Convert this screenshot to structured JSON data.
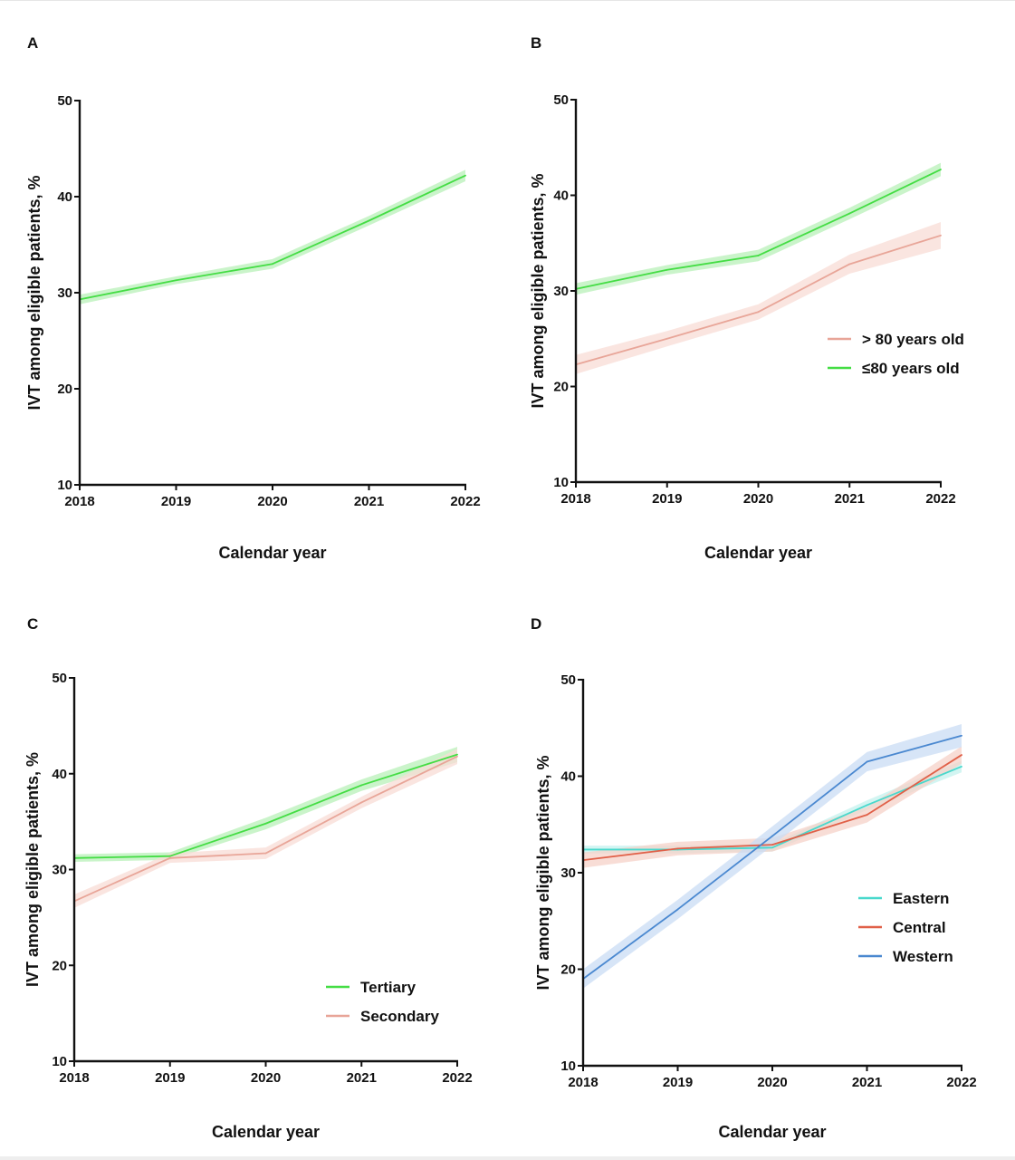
{
  "chart_data": [
    {
      "panel": "A",
      "type": "line",
      "xlabel": "Calendar year",
      "ylabel": "IVT among eligible patients, %",
      "x": [
        "2018",
        "2019",
        "2020",
        "2021",
        "2022"
      ],
      "yticks": [
        "10",
        "20",
        "30",
        "40",
        "50"
      ],
      "ylim": [
        10,
        50
      ],
      "legend": null,
      "series": [
        {
          "values": [
            29.3,
            31.3,
            33.0,
            37.5,
            42.2
          ],
          "lower": [
            28.8,
            30.9,
            32.5,
            37.0,
            41.6
          ],
          "upper": [
            29.8,
            31.7,
            33.5,
            38.0,
            42.8
          ],
          "color": "#44dd44",
          "band": "#b8f0b8"
        }
      ]
    },
    {
      "panel": "B",
      "type": "line",
      "xlabel": "Calendar year",
      "ylabel": "IVT among eligible patients, %",
      "x": [
        "2018",
        "2019",
        "2020",
        "2021",
        "2022"
      ],
      "yticks": [
        "10",
        "20",
        "30",
        "40",
        "50"
      ],
      "ylim": [
        10,
        50
      ],
      "legend": "center-right",
      "series": [
        {
          "name": "> 80 years old",
          "values": [
            22.3,
            25.0,
            27.8,
            32.8,
            35.8
          ],
          "lower": [
            21.3,
            24.2,
            27.0,
            31.8,
            34.4
          ],
          "upper": [
            23.3,
            25.8,
            28.6,
            33.8,
            37.2
          ],
          "color": "#e8a598",
          "band": "#f8dcd6"
        },
        {
          "name": "≤80 years old",
          "values": [
            30.2,
            32.2,
            33.7,
            38.1,
            42.7
          ],
          "lower": [
            29.6,
            31.7,
            33.1,
            37.5,
            42.0
          ],
          "upper": [
            30.8,
            32.7,
            34.3,
            38.7,
            43.4
          ],
          "color": "#44dd44",
          "band": "#b8f0b8"
        }
      ]
    },
    {
      "panel": "C",
      "type": "line",
      "xlabel": "Calendar year",
      "ylabel": "IVT among eligible patients, %",
      "x": [
        "2018",
        "2019",
        "2020",
        "2021",
        "2022"
      ],
      "yticks": [
        "10",
        "20",
        "30",
        "40",
        "50"
      ],
      "ylim": [
        10,
        50
      ],
      "legend": "bottom-right",
      "series": [
        {
          "name": "Tertiary",
          "values": [
            31.2,
            31.4,
            34.8,
            38.8,
            42.0
          ],
          "lower": [
            30.8,
            31.0,
            34.2,
            38.2,
            41.2
          ],
          "upper": [
            31.6,
            31.8,
            35.4,
            39.4,
            42.8
          ],
          "color": "#44dd44",
          "band": "#b8f0b8"
        },
        {
          "name": "Secondary",
          "values": [
            26.7,
            31.2,
            31.7,
            37.0,
            41.8
          ],
          "lower": [
            26.0,
            30.7,
            31.1,
            36.4,
            41.0
          ],
          "upper": [
            27.4,
            31.7,
            32.3,
            37.6,
            42.6
          ],
          "color": "#e8a598",
          "band": "#f8dcd6"
        }
      ]
    },
    {
      "panel": "D",
      "type": "line",
      "xlabel": "Calendar year",
      "ylabel": "IVT among eligible patients, %",
      "x": [
        "2018",
        "2019",
        "2020",
        "2021",
        "2022"
      ],
      "yticks": [
        "10",
        "20",
        "30",
        "40",
        "50"
      ],
      "ylim": [
        10,
        50
      ],
      "legend": "center-right",
      "series": [
        {
          "name": "Eastern",
          "values": [
            32.4,
            32.4,
            32.6,
            37.0,
            41.0
          ],
          "lower": [
            32.0,
            32.0,
            32.2,
            36.5,
            40.4
          ],
          "upper": [
            32.8,
            32.8,
            33.0,
            37.5,
            41.6
          ],
          "color": "#48d8cc",
          "band": "#c4f1ed"
        },
        {
          "name": "Central",
          "values": [
            31.3,
            32.5,
            32.9,
            36.0,
            42.2
          ],
          "lower": [
            30.5,
            31.8,
            32.2,
            35.2,
            41.3
          ],
          "upper": [
            32.1,
            33.2,
            33.6,
            36.8,
            43.1
          ],
          "color": "#e06048",
          "band": "#f5d2c8"
        },
        {
          "name": "Western",
          "values": [
            19.0,
            26.2,
            33.8,
            41.5,
            44.2
          ],
          "lower": [
            18.0,
            25.2,
            32.8,
            40.5,
            43.0
          ],
          "upper": [
            20.0,
            27.2,
            34.8,
            42.5,
            45.4
          ],
          "color": "#4a88d0",
          "band": "#c9dcf4"
        }
      ]
    }
  ]
}
